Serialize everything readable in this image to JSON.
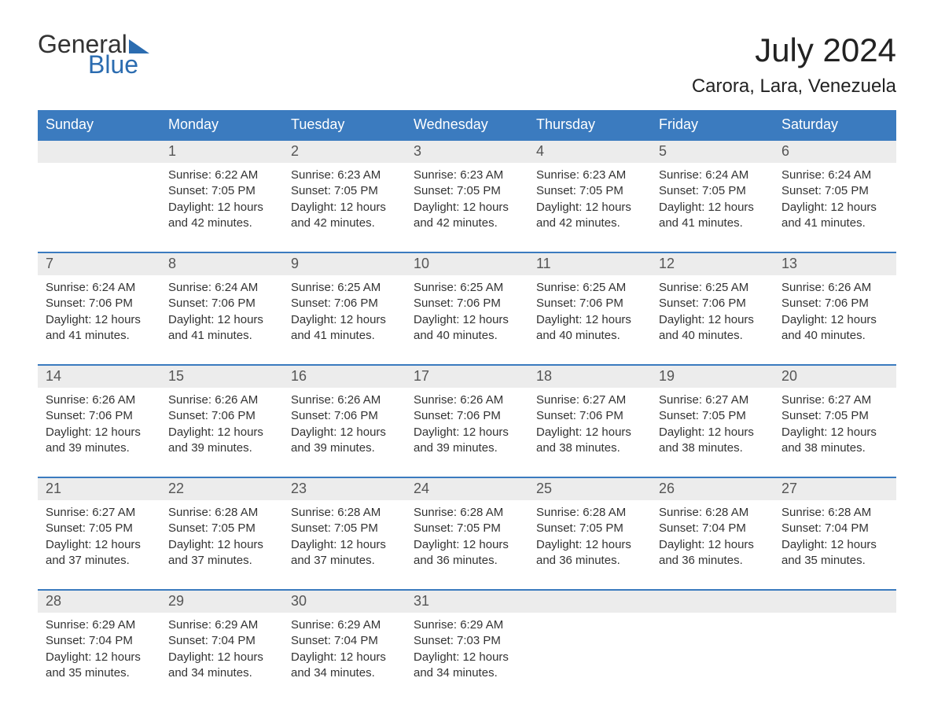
{
  "brand": {
    "word1": "General",
    "word2": "Blue",
    "accent_color": "#2b6cb0"
  },
  "title": "July 2024",
  "location": "Carora, Lara, Venezuela",
  "colors": {
    "header_bg": "#3b7bbf",
    "header_text": "#ffffff",
    "daynum_bg": "#ececec",
    "daynum_text": "#555555",
    "body_text": "#333333",
    "week_border": "#3b7bbf",
    "page_bg": "#ffffff"
  },
  "fonts": {
    "title_size_pt": 32,
    "location_size_pt": 18,
    "header_size_pt": 14,
    "daynum_size_pt": 14,
    "body_size_pt": 11
  },
  "day_names": [
    "Sunday",
    "Monday",
    "Tuesday",
    "Wednesday",
    "Thursday",
    "Friday",
    "Saturday"
  ],
  "weeks": [
    [
      {
        "day": "",
        "lines": []
      },
      {
        "day": "1",
        "lines": [
          "Sunrise: 6:22 AM",
          "Sunset: 7:05 PM",
          "Daylight: 12 hours",
          "and 42 minutes."
        ]
      },
      {
        "day": "2",
        "lines": [
          "Sunrise: 6:23 AM",
          "Sunset: 7:05 PM",
          "Daylight: 12 hours",
          "and 42 minutes."
        ]
      },
      {
        "day": "3",
        "lines": [
          "Sunrise: 6:23 AM",
          "Sunset: 7:05 PM",
          "Daylight: 12 hours",
          "and 42 minutes."
        ]
      },
      {
        "day": "4",
        "lines": [
          "Sunrise: 6:23 AM",
          "Sunset: 7:05 PM",
          "Daylight: 12 hours",
          "and 42 minutes."
        ]
      },
      {
        "day": "5",
        "lines": [
          "Sunrise: 6:24 AM",
          "Sunset: 7:05 PM",
          "Daylight: 12 hours",
          "and 41 minutes."
        ]
      },
      {
        "day": "6",
        "lines": [
          "Sunrise: 6:24 AM",
          "Sunset: 7:05 PM",
          "Daylight: 12 hours",
          "and 41 minutes."
        ]
      }
    ],
    [
      {
        "day": "7",
        "lines": [
          "Sunrise: 6:24 AM",
          "Sunset: 7:06 PM",
          "Daylight: 12 hours",
          "and 41 minutes."
        ]
      },
      {
        "day": "8",
        "lines": [
          "Sunrise: 6:24 AM",
          "Sunset: 7:06 PM",
          "Daylight: 12 hours",
          "and 41 minutes."
        ]
      },
      {
        "day": "9",
        "lines": [
          "Sunrise: 6:25 AM",
          "Sunset: 7:06 PM",
          "Daylight: 12 hours",
          "and 41 minutes."
        ]
      },
      {
        "day": "10",
        "lines": [
          "Sunrise: 6:25 AM",
          "Sunset: 7:06 PM",
          "Daylight: 12 hours",
          "and 40 minutes."
        ]
      },
      {
        "day": "11",
        "lines": [
          "Sunrise: 6:25 AM",
          "Sunset: 7:06 PM",
          "Daylight: 12 hours",
          "and 40 minutes."
        ]
      },
      {
        "day": "12",
        "lines": [
          "Sunrise: 6:25 AM",
          "Sunset: 7:06 PM",
          "Daylight: 12 hours",
          "and 40 minutes."
        ]
      },
      {
        "day": "13",
        "lines": [
          "Sunrise: 6:26 AM",
          "Sunset: 7:06 PM",
          "Daylight: 12 hours",
          "and 40 minutes."
        ]
      }
    ],
    [
      {
        "day": "14",
        "lines": [
          "Sunrise: 6:26 AM",
          "Sunset: 7:06 PM",
          "Daylight: 12 hours",
          "and 39 minutes."
        ]
      },
      {
        "day": "15",
        "lines": [
          "Sunrise: 6:26 AM",
          "Sunset: 7:06 PM",
          "Daylight: 12 hours",
          "and 39 minutes."
        ]
      },
      {
        "day": "16",
        "lines": [
          "Sunrise: 6:26 AM",
          "Sunset: 7:06 PM",
          "Daylight: 12 hours",
          "and 39 minutes."
        ]
      },
      {
        "day": "17",
        "lines": [
          "Sunrise: 6:26 AM",
          "Sunset: 7:06 PM",
          "Daylight: 12 hours",
          "and 39 minutes."
        ]
      },
      {
        "day": "18",
        "lines": [
          "Sunrise: 6:27 AM",
          "Sunset: 7:06 PM",
          "Daylight: 12 hours",
          "and 38 minutes."
        ]
      },
      {
        "day": "19",
        "lines": [
          "Sunrise: 6:27 AM",
          "Sunset: 7:05 PM",
          "Daylight: 12 hours",
          "and 38 minutes."
        ]
      },
      {
        "day": "20",
        "lines": [
          "Sunrise: 6:27 AM",
          "Sunset: 7:05 PM",
          "Daylight: 12 hours",
          "and 38 minutes."
        ]
      }
    ],
    [
      {
        "day": "21",
        "lines": [
          "Sunrise: 6:27 AM",
          "Sunset: 7:05 PM",
          "Daylight: 12 hours",
          "and 37 minutes."
        ]
      },
      {
        "day": "22",
        "lines": [
          "Sunrise: 6:28 AM",
          "Sunset: 7:05 PM",
          "Daylight: 12 hours",
          "and 37 minutes."
        ]
      },
      {
        "day": "23",
        "lines": [
          "Sunrise: 6:28 AM",
          "Sunset: 7:05 PM",
          "Daylight: 12 hours",
          "and 37 minutes."
        ]
      },
      {
        "day": "24",
        "lines": [
          "Sunrise: 6:28 AM",
          "Sunset: 7:05 PM",
          "Daylight: 12 hours",
          "and 36 minutes."
        ]
      },
      {
        "day": "25",
        "lines": [
          "Sunrise: 6:28 AM",
          "Sunset: 7:05 PM",
          "Daylight: 12 hours",
          "and 36 minutes."
        ]
      },
      {
        "day": "26",
        "lines": [
          "Sunrise: 6:28 AM",
          "Sunset: 7:04 PM",
          "Daylight: 12 hours",
          "and 36 minutes."
        ]
      },
      {
        "day": "27",
        "lines": [
          "Sunrise: 6:28 AM",
          "Sunset: 7:04 PM",
          "Daylight: 12 hours",
          "and 35 minutes."
        ]
      }
    ],
    [
      {
        "day": "28",
        "lines": [
          "Sunrise: 6:29 AM",
          "Sunset: 7:04 PM",
          "Daylight: 12 hours",
          "and 35 minutes."
        ]
      },
      {
        "day": "29",
        "lines": [
          "Sunrise: 6:29 AM",
          "Sunset: 7:04 PM",
          "Daylight: 12 hours",
          "and 34 minutes."
        ]
      },
      {
        "day": "30",
        "lines": [
          "Sunrise: 6:29 AM",
          "Sunset: 7:04 PM",
          "Daylight: 12 hours",
          "and 34 minutes."
        ]
      },
      {
        "day": "31",
        "lines": [
          "Sunrise: 6:29 AM",
          "Sunset: 7:03 PM",
          "Daylight: 12 hours",
          "and 34 minutes."
        ]
      },
      {
        "day": "",
        "lines": []
      },
      {
        "day": "",
        "lines": []
      },
      {
        "day": "",
        "lines": []
      }
    ]
  ]
}
